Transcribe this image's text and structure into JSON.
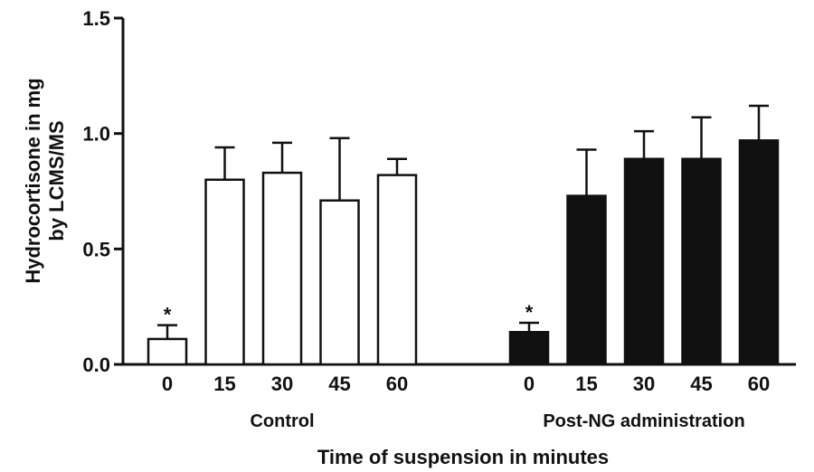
{
  "chart_data": {
    "type": "bar",
    "ylabel_line1": "Hydrocortisone in mg",
    "ylabel_line2": "by LCMS/MS",
    "xlabel": "Time of suspension in minutes",
    "ylim": [
      0,
      1.5
    ],
    "yticks": [
      "0.0",
      "0.5",
      "1.0",
      "1.5"
    ],
    "yticks_values": [
      0,
      0.5,
      1.0,
      1.5
    ],
    "categories": [
      "0",
      "15",
      "30",
      "45",
      "60"
    ],
    "series": [
      {
        "name": "Control",
        "color": "#ffffff",
        "values": [
          0.11,
          0.8,
          0.83,
          0.71,
          0.82
        ],
        "errors": [
          0.06,
          0.14,
          0.13,
          0.27,
          0.07
        ],
        "markers": [
          "*",
          "",
          "",
          "",
          ""
        ]
      },
      {
        "name": "Post-NG administration",
        "color": "#111111",
        "values": [
          0.14,
          0.73,
          0.89,
          0.89,
          0.97
        ],
        "errors": [
          0.04,
          0.2,
          0.12,
          0.18,
          0.15
        ],
        "markers": [
          "*",
          "",
          "",
          "",
          ""
        ]
      }
    ],
    "grid": false,
    "legend": "none"
  }
}
